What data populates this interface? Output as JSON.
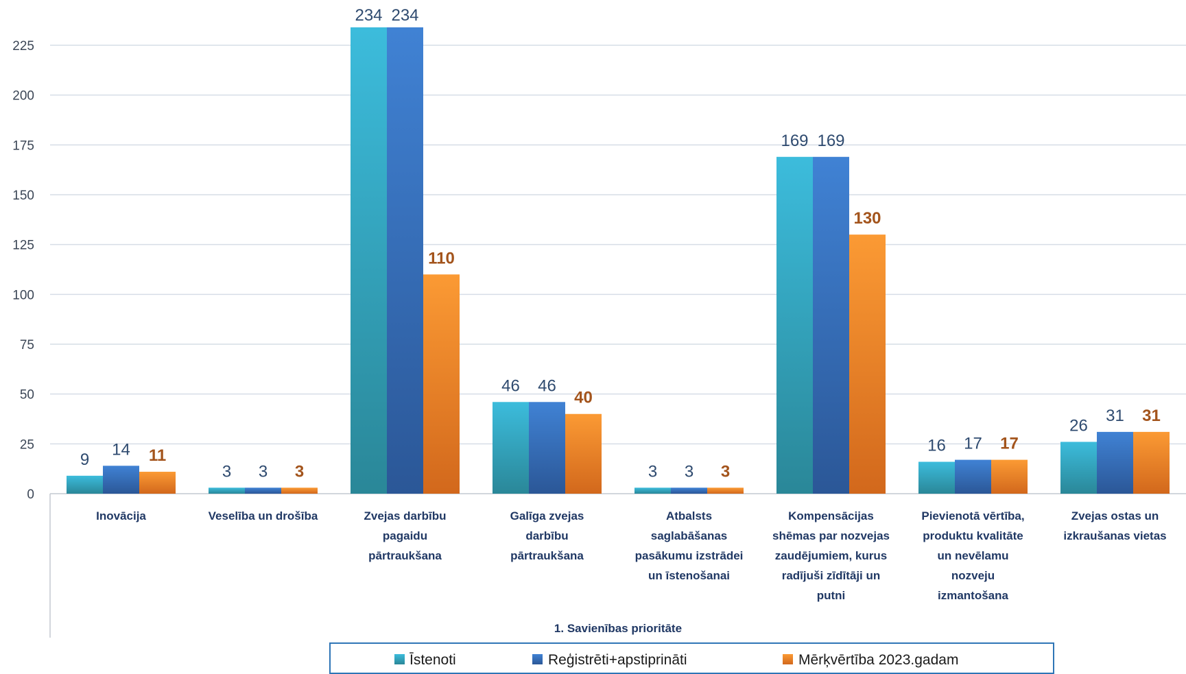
{
  "chart_data": {
    "type": "bar",
    "categories": [
      [
        "Inovācija"
      ],
      [
        "Veselība un drošība"
      ],
      [
        "Zvejas darbību",
        "pagaidu",
        "pārtraukšana"
      ],
      [
        "Galīga zvejas",
        "darbību",
        "pārtraukšana"
      ],
      [
        "Atbalsts",
        "saglabāšanas",
        "pasākumu izstrādei",
        "un īstenošanai"
      ],
      [
        "Kompensācijas",
        "shēmas par nozvejas",
        "zaudējumiem, kurus",
        "radījuši zīdītāji un",
        "putni"
      ],
      [
        "Pievienotā vērtība,",
        "produktu kvalitāte",
        "un nevēlamu",
        "nozveju",
        "izmantošana"
      ],
      [
        "Zvejas ostas un",
        "izkraušanas vietas"
      ]
    ],
    "series": [
      {
        "name": "Īstenoti",
        "values": [
          9,
          3,
          234,
          46,
          3,
          169,
          16,
          26
        ],
        "colors": [
          "#3cbcdc",
          "#2a8798"
        ],
        "label_color": "#2e4a6f"
      },
      {
        "name": "Reģistrēti+apstiprināti",
        "values": [
          14,
          3,
          234,
          46,
          3,
          169,
          17,
          31
        ],
        "colors": [
          "#4082d4",
          "#2b5797"
        ],
        "label_color": "#2e4a6f"
      },
      {
        "name": "Mērķvērtība 2023.gadam",
        "values": [
          11,
          3,
          110,
          40,
          3,
          130,
          17,
          31
        ],
        "colors": [
          "#fb9a34",
          "#d2681c"
        ],
        "label_color": "#a3541c"
      }
    ],
    "xlabel": "1. Savienības prioritāte",
    "ylabel": "",
    "yticks": [
      0,
      25,
      50,
      75,
      100,
      125,
      150,
      175,
      200,
      225
    ],
    "ylim": [
      0,
      250
    ],
    "grid": true,
    "data_labels": true,
    "legend": "bottom"
  }
}
